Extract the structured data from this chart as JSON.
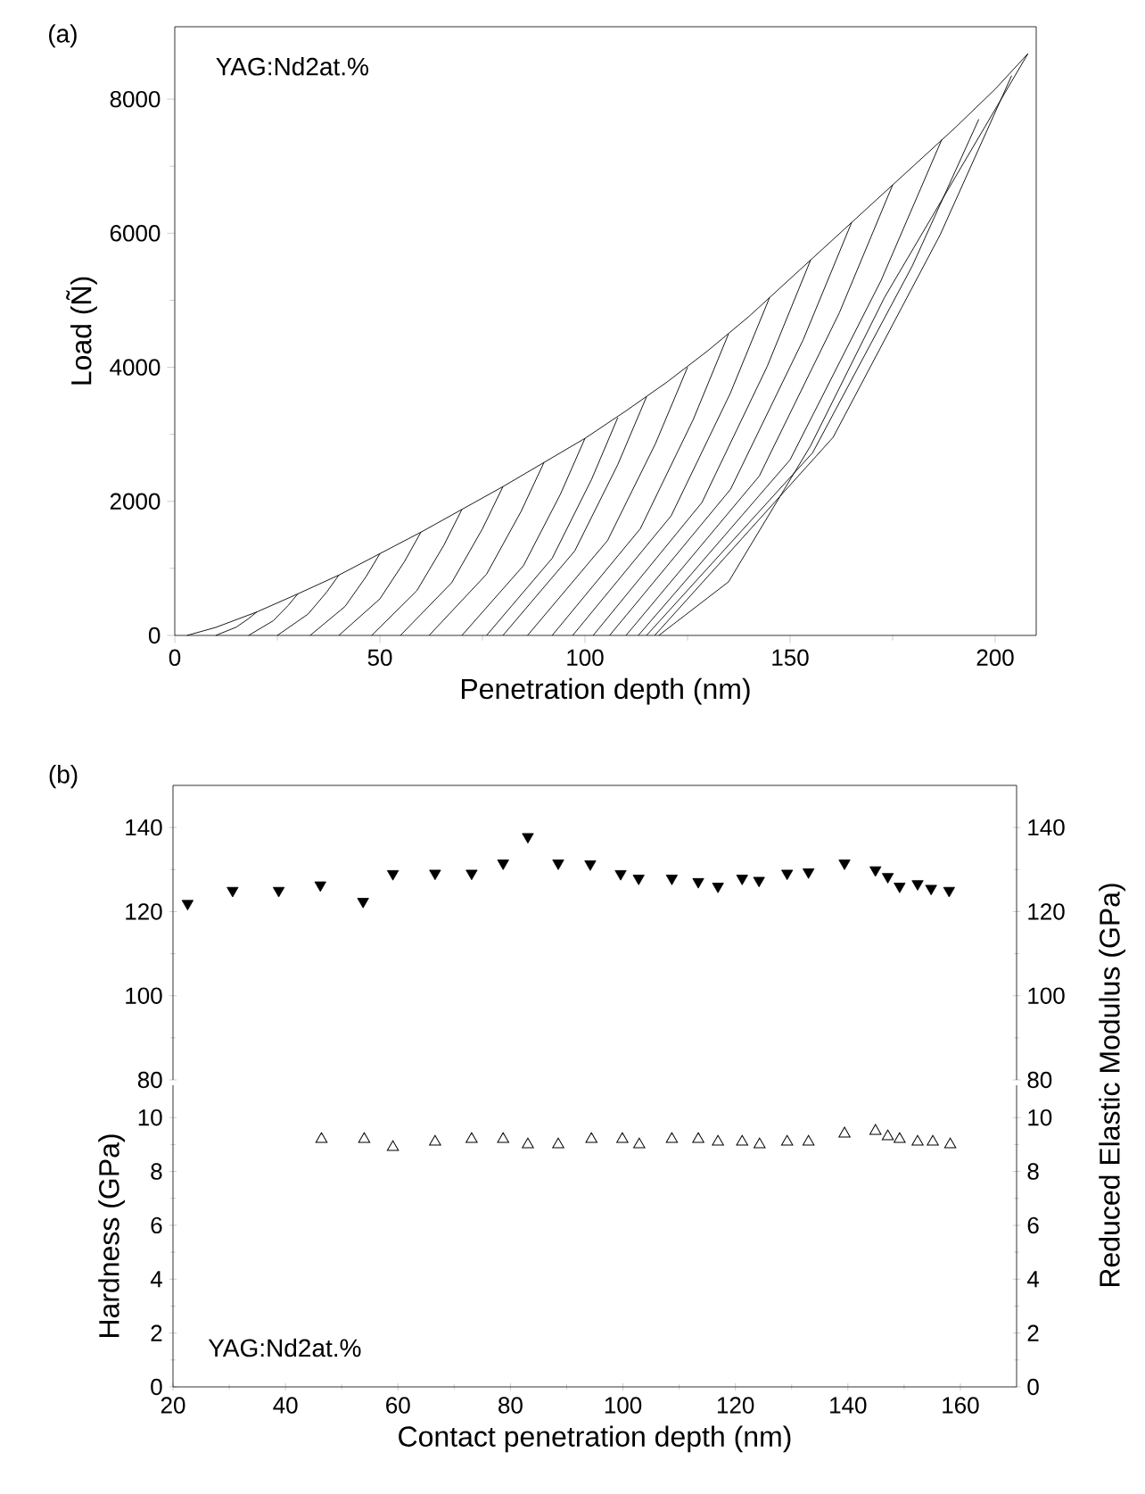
{
  "chart_data": [
    {
      "type": "line",
      "xlabel": "Penetration depth (nm)",
      "ylabel": "Load (Ñ)",
      "annotations": [
        "(a)",
        "YAG:Nd2at.%"
      ],
      "xlim": [
        0,
        210
      ],
      "ylim": [
        0,
        9080
      ],
      "xticks": [
        0,
        50,
        100,
        150,
        200
      ],
      "yticks": [
        0,
        2000,
        4000,
        6000,
        8000
      ],
      "series": [
        {
          "color": "#000000",
          "x": [
            3,
            10,
            20,
            30,
            40,
            50,
            60,
            70,
            80,
            90,
            100,
            110,
            120,
            130,
            140,
            150,
            160,
            170,
            180,
            190,
            200,
            208
          ],
          "values": [
            0,
            120,
            350,
            620,
            900,
            1220,
            1540,
            1880,
            2220,
            2580,
            2940,
            3350,
            3780,
            4250,
            4760,
            5320,
            5880,
            6440,
            7000,
            7560,
            8150,
            8680
          ]
        },
        {
          "color": "#000000",
          "x": [
            10,
            15,
            18,
            20
          ],
          "values": [
            0,
            124,
            251,
            350
          ]
        },
        {
          "color": "#000000",
          "x": [
            18,
            24,
            27.6,
            30
          ],
          "values": [
            0,
            219,
            444,
            620
          ]
        },
        {
          "color": "#000000",
          "x": [
            25,
            32.5,
            37,
            40
          ],
          "values": [
            0,
            319,
            644,
            900
          ]
        },
        {
          "color": "#000000",
          "x": [
            33,
            41.5,
            46.6,
            50
          ],
          "values": [
            0,
            432,
            874,
            1220
          ]
        },
        {
          "color": "#000000",
          "x": [
            40,
            50,
            56,
            60
          ],
          "values": [
            0,
            545,
            1103,
            1540
          ]
        },
        {
          "color": "#000000",
          "x": [
            48,
            59,
            65.6,
            70
          ],
          "values": [
            0,
            666,
            1346,
            1880
          ]
        },
        {
          "color": "#000000",
          "x": [
            55,
            67.5,
            75,
            80
          ],
          "values": [
            0,
            786,
            1590,
            2220
          ]
        },
        {
          "color": "#000000",
          "x": [
            62,
            76,
            84.4,
            90
          ],
          "values": [
            0,
            913,
            1847,
            2580
          ]
        },
        {
          "color": "#000000",
          "x": [
            70,
            85,
            94,
            100
          ],
          "values": [
            0,
            1041,
            2105,
            2940
          ]
        },
        {
          "color": "#000000",
          "x": [
            76,
            92,
            101.6,
            108
          ],
          "values": [
            0,
            1151,
            2327,
            3250
          ]
        },
        {
          "color": "#000000",
          "x": [
            80,
            97.5,
            108,
            115
          ],
          "values": [
            0,
            1260,
            2549,
            3560
          ]
        },
        {
          "color": "#000000",
          "x": [
            86,
            105.5,
            117.2,
            125
          ],
          "values": [
            0,
            1416,
            2864,
            4000
          ]
        },
        {
          "color": "#000000",
          "x": [
            92,
            113.5,
            126.4,
            135
          ],
          "values": [
            0,
            1593,
            3222,
            4500
          ]
        },
        {
          "color": "#000000",
          "x": [
            97,
            121,
            135.4,
            145
          ],
          "values": [
            0,
            1784,
            3609,
            5040
          ]
        },
        {
          "color": "#000000",
          "x": [
            102,
            128.5,
            144.4,
            155
          ],
          "values": [
            0,
            1982,
            4010,
            5600
          ]
        },
        {
          "color": "#000000",
          "x": [
            106,
            135.5,
            153.2,
            165
          ],
          "values": [
            0,
            2181,
            4411,
            6160
          ]
        },
        {
          "color": "#000000",
          "x": [
            110,
            142.5,
            162,
            175
          ],
          "values": [
            0,
            2379,
            4812,
            6720
          ]
        },
        {
          "color": "#000000",
          "x": [
            113,
            150,
            172.2,
            187
          ],
          "values": [
            0,
            2620,
            5298,
            7400
          ]
        },
        {
          "color": "#000000",
          "x": [
            115,
            155.5,
            179.8,
            196
          ],
          "values": [
            0,
            2726,
            5513,
            7700
          ]
        },
        {
          "color": "#000000",
          "x": [
            117,
            160.5,
            186.6,
            204
          ],
          "values": [
            0,
            2956,
            5979,
            8350
          ]
        },
        {
          "color": "#000000",
          "x": [
            118,
            135,
            155,
            173,
            208
          ],
          "values": [
            0,
            800,
            2830,
            5040,
            8680
          ]
        }
      ]
    },
    {
      "type": "scatter",
      "annotations": [
        "(b)"
      ],
      "xlim": [
        20,
        170
      ],
      "ylim": [
        80,
        150
      ],
      "yticks": [
        80,
        100,
        120,
        140
      ],
      "y2lim": [
        80,
        150
      ],
      "y2ticks": [
        80,
        100,
        120,
        140
      ],
      "tick_labels": "y",
      "series": [
        {
          "color": "#000000",
          "axis": "y2",
          "marker": "triangle",
          "x": [
            22.6,
            30.6,
            38.8,
            46.2,
            53.8,
            59.1,
            66.6,
            73.1,
            78.7,
            83.1,
            88.5,
            94.2,
            99.6,
            102.8,
            108.7,
            113.4,
            116.9,
            121.2,
            124.2,
            129.2,
            133.0,
            139.4,
            144.9,
            147.1,
            149.2,
            152.4,
            154.8,
            158.0
          ],
          "values": [
            121.9,
            125.0,
            125.0,
            126.3,
            122.4,
            129.0,
            129.1,
            129.1,
            131.5,
            137.8,
            131.5,
            131.3,
            129.0,
            127.9,
            127.9,
            127.1,
            126.0,
            127.9,
            127.4,
            129.1,
            129.4,
            131.5,
            129.9,
            128.3,
            126.0,
            126.6,
            125.5,
            125.0
          ]
        }
      ]
    },
    {
      "type": "scatter",
      "xlabel": "Contact penetration depth (nm)",
      "ylabel": "Hardness (GPa)",
      "y2label": "Reduced Elastic Modulus (GPa)",
      "annotations": [
        "YAG:Nd2at.%"
      ],
      "xlim": [
        20,
        170
      ],
      "ylim": [
        0,
        11.2
      ],
      "xticks": [
        20,
        40,
        60,
        80,
        100,
        120,
        140,
        160
      ],
      "yticks": [
        0,
        2,
        4,
        6,
        8,
        10
      ],
      "y2lim": [
        0,
        11.2
      ],
      "y2ticks": [
        0,
        2,
        4,
        6,
        8,
        10
      ],
      "series": [
        {
          "color": "#000000",
          "axis": "y",
          "marker": "triangle",
          "x": [
            46.4,
            54.0,
            59.1,
            66.6,
            73.1,
            78.7,
            83.1,
            88.5,
            94.4,
            99.9,
            102.9,
            108.7,
            113.4,
            116.9,
            121.2,
            124.3,
            129.2,
            133.0,
            139.4,
            144.9,
            147.1,
            149.2,
            152.4,
            155.1,
            158.2
          ],
          "values": [
            9.2,
            9.2,
            8.9,
            9.1,
            9.2,
            9.2,
            9.0,
            9.0,
            9.2,
            9.2,
            9.0,
            9.2,
            9.2,
            9.1,
            9.1,
            9.0,
            9.1,
            9.1,
            9.4,
            9.5,
            9.3,
            9.2,
            9.1,
            9.1,
            9.0
          ]
        }
      ]
    }
  ]
}
